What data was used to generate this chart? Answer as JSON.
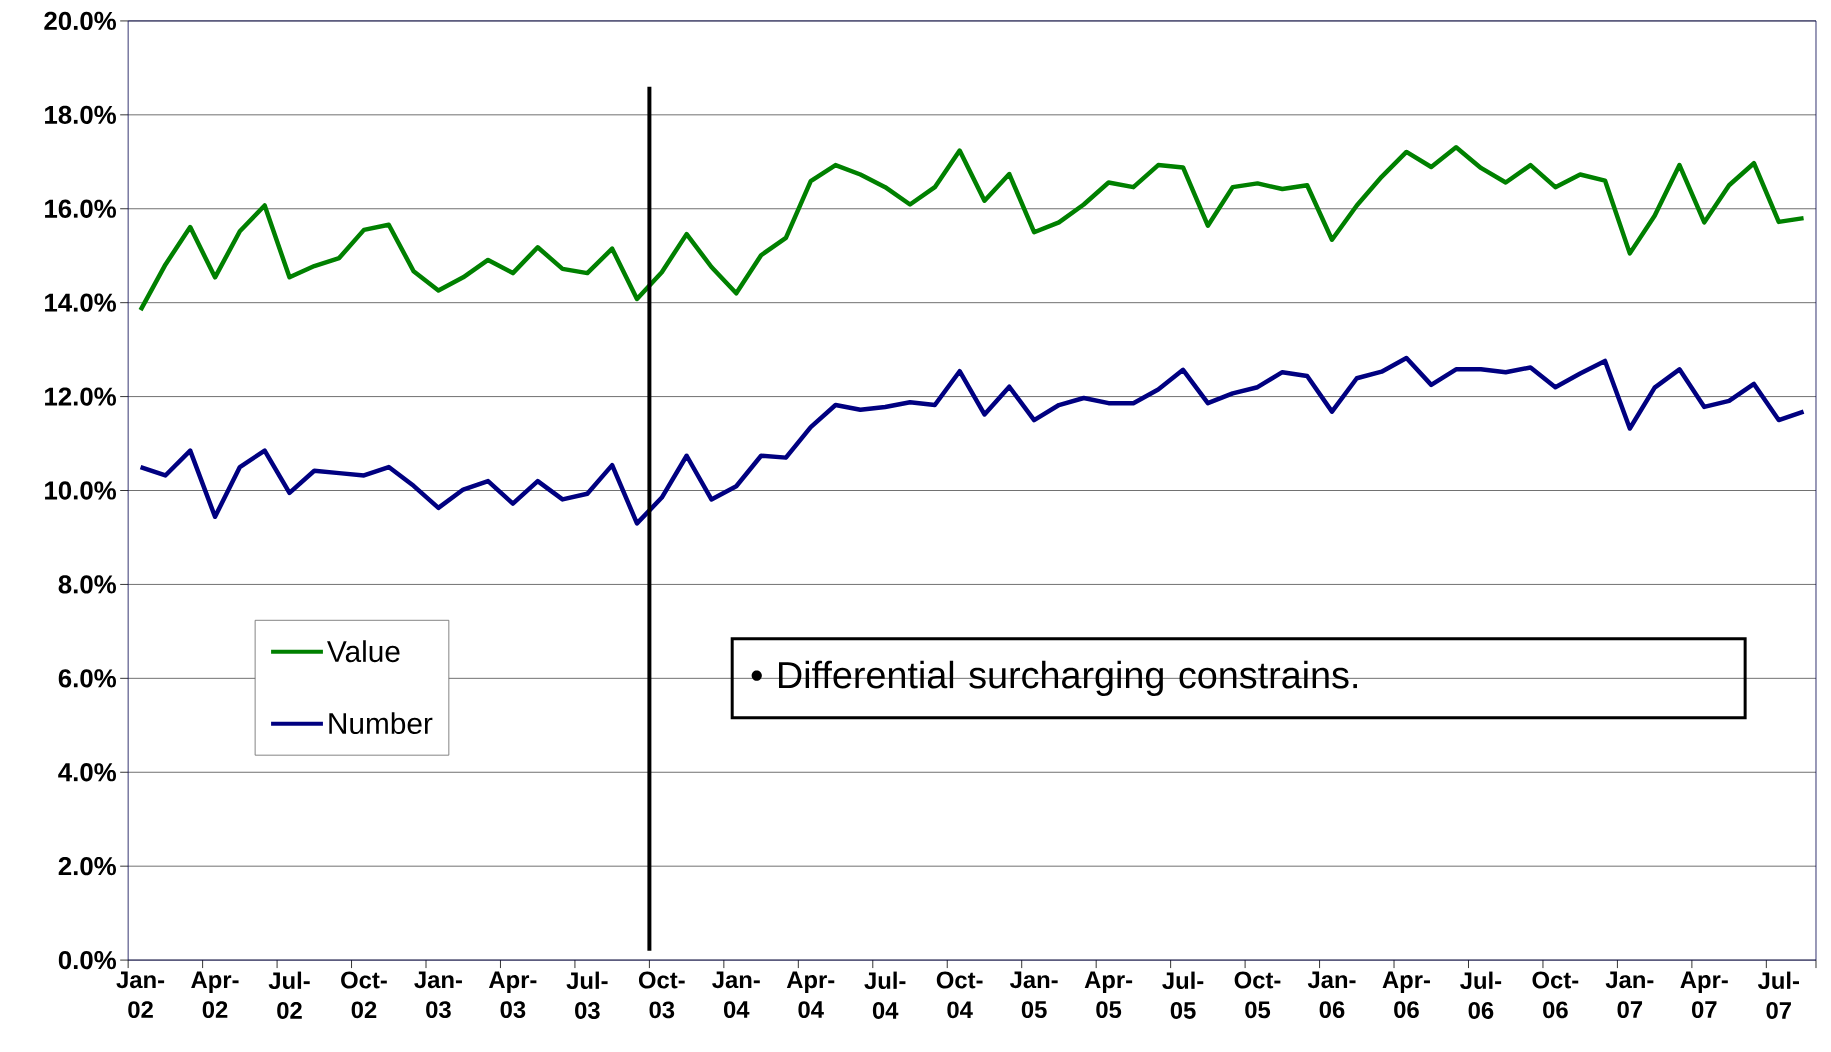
{
  "chart_data": {
    "type": "line",
    "categories": [
      "Jan-02",
      null,
      null,
      "Apr-02",
      null,
      null,
      "Jul-02",
      null,
      null,
      "Oct-02",
      null,
      null,
      "Jan-03",
      null,
      null,
      "Apr-03",
      null,
      null,
      "Jul-03",
      null,
      null,
      "Oct-03",
      null,
      null,
      "Jan-04",
      null,
      null,
      "Apr-04",
      null,
      null,
      "Jul-04",
      null,
      null,
      "Oct-04",
      null,
      null,
      "Jan-05",
      null,
      null,
      "Apr-05",
      null,
      null,
      "Jul-05",
      null,
      null,
      "Oct-05",
      null,
      null,
      "Jan-06",
      null,
      null,
      "Apr-06",
      null,
      null,
      "Jul-06",
      null,
      null,
      "Oct-06",
      null,
      null,
      "Jan-07",
      null,
      null,
      "Apr-07",
      null,
      null,
      "Jul-07",
      null
    ],
    "series": [
      {
        "name": "Value",
        "color": "#008000",
        "values": [
          13.84,
          14.81,
          15.61,
          14.54,
          15.52,
          16.07,
          14.54,
          14.78,
          14.95,
          15.55,
          15.66,
          14.67,
          14.26,
          14.54,
          14.91,
          14.63,
          15.18,
          14.72,
          14.63,
          15.15,
          14.08,
          14.65,
          15.46,
          14.76,
          14.2,
          15.01,
          15.38,
          16.59,
          16.93,
          16.73,
          16.46,
          16.09,
          16.46,
          17.24,
          16.17,
          16.74,
          15.5,
          15.71,
          16.09,
          16.56,
          16.46,
          16.93,
          16.88,
          15.64,
          16.46,
          16.54,
          16.42,
          16.5,
          15.34,
          16.07,
          16.68,
          17.21,
          16.89,
          17.31,
          16.87,
          16.56,
          16.93,
          16.46,
          16.73,
          16.6,
          15.05,
          15.85,
          16.93,
          15.71,
          16.5,
          16.97,
          15.72,
          15.8
        ]
      },
      {
        "name": "Number",
        "color": "#000080",
        "values": [
          10.5,
          10.32,
          10.85,
          9.44,
          10.5,
          10.85,
          9.95,
          10.42,
          10.37,
          10.32,
          10.5,
          10.1,
          9.63,
          10.02,
          10.2,
          9.72,
          10.2,
          9.81,
          9.93,
          10.54,
          9.3,
          9.85,
          10.74,
          9.81,
          10.09,
          10.74,
          10.7,
          11.35,
          11.82,
          11.72,
          11.78,
          11.88,
          11.82,
          12.54,
          11.62,
          12.21,
          11.5,
          11.82,
          11.97,
          11.86,
          11.86,
          12.15,
          12.57,
          11.86,
          12.07,
          12.2,
          12.52,
          12.44,
          11.68,
          12.39,
          12.53,
          12.82,
          12.25,
          12.58,
          12.58,
          12.52,
          12.62,
          12.2,
          12.49,
          12.76,
          11.32,
          12.19,
          12.58,
          11.78,
          11.91,
          12.27,
          11.5,
          11.68
        ]
      }
    ],
    "ylim": [
      0,
      20
    ],
    "yticks": [
      {
        "value": 0,
        "label": "0.0%"
      },
      {
        "value": 2,
        "label": "2.0%"
      },
      {
        "value": 4,
        "label": "4.0%"
      },
      {
        "value": 6,
        "label": "6.0%"
      },
      {
        "value": 8,
        "label": "8.0%"
      },
      {
        "value": 10,
        "label": "10.0%"
      },
      {
        "value": 12,
        "label": "12.0%"
      },
      {
        "value": 14,
        "label": "14.0%"
      },
      {
        "value": 16,
        "label": "16.0%"
      },
      {
        "value": 18,
        "label": "18.0%"
      },
      {
        "value": 20,
        "label": "20.0%"
      }
    ],
    "ref_lines": [
      {
        "axis": "x",
        "value": "Oct-03",
        "color": "#000000"
      }
    ],
    "annotations": [
      "•  Differential surcharging constrains."
    ],
    "grid": "y",
    "legend": "left"
  }
}
